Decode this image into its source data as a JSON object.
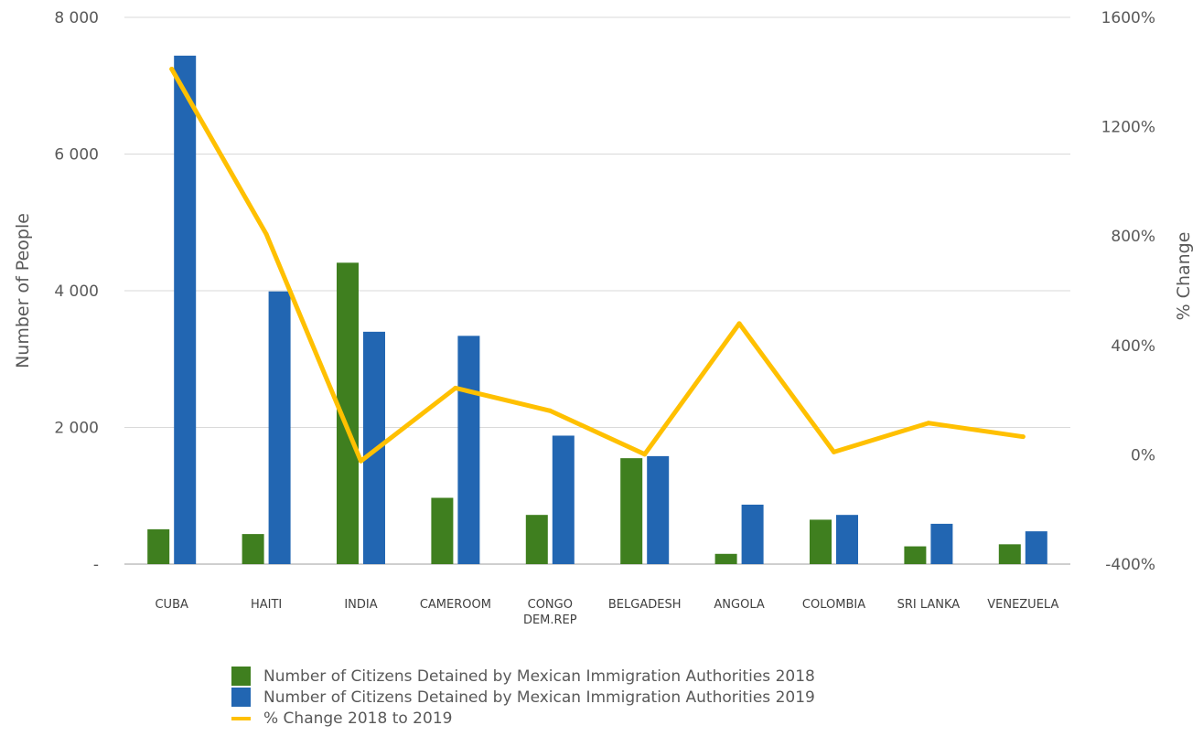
{
  "chart_data": {
    "type": "bar",
    "categories": [
      [
        "CUBA"
      ],
      [
        "HAITI"
      ],
      [
        "INDIA"
      ],
      [
        "CAMEROOM"
      ],
      [
        "CONGO",
        "DEM.REP"
      ],
      [
        "BELGADESH"
      ],
      [
        "ANGOLA"
      ],
      [
        "COLOMBIA"
      ],
      [
        "SRI LANKA"
      ],
      [
        "VENEZUELA"
      ]
    ],
    "series": [
      {
        "name": "Number of Citizens Detained by Mexican Immigration Authorities 2018",
        "type": "bar",
        "axis": "left",
        "color": "#3f7f1f",
        "values": [
          510,
          440,
          4410,
          970,
          720,
          1550,
          150,
          650,
          260,
          290
        ]
      },
      {
        "name": "Number of Citizens Detained by Mexican Immigration Authorities 2019",
        "type": "bar",
        "axis": "left",
        "color": "#2266b2",
        "values": [
          7440,
          3990,
          3400,
          3340,
          1880,
          1580,
          870,
          720,
          590,
          480
        ]
      },
      {
        "name": "% Change 2018 to 2019",
        "type": "line",
        "axis": "right",
        "color": "#ffc000",
        "values": [
          1411,
          807,
          -23,
          244,
          161,
          2,
          480,
          10,
          116,
          66
        ]
      }
    ],
    "ylabel": "Number of People",
    "y2label": "% Change",
    "ylim": [
      0,
      8000
    ],
    "y2lim": [
      -400,
      1600
    ],
    "yticks": [
      {
        "value": 0,
        "label": "-"
      },
      {
        "value": 2000,
        "label": "2 000"
      },
      {
        "value": 4000,
        "label": "4 000"
      },
      {
        "value": 6000,
        "label": "6 000"
      },
      {
        "value": 8000,
        "label": "8 000"
      }
    ],
    "y2ticks": [
      {
        "value": -400,
        "label": "-400%"
      },
      {
        "value": 0,
        "label": "0%"
      },
      {
        "value": 400,
        "label": "400%"
      },
      {
        "value": 800,
        "label": "800%"
      },
      {
        "value": 1200,
        "label": "1200%"
      },
      {
        "value": 1600,
        "label": "1600%"
      }
    ],
    "grid": true,
    "legend_position": "bottom"
  }
}
